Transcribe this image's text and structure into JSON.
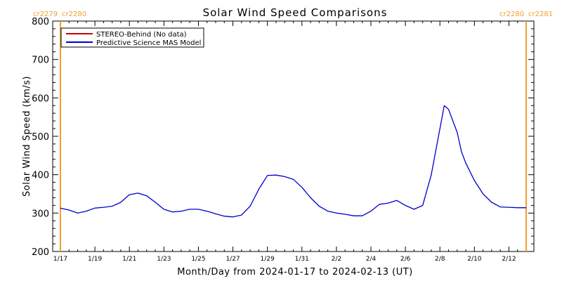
{
  "chart_data": {
    "type": "line",
    "title": "Solar Wind Speed Comparisons",
    "xlabel": "Month/Day from 2024-01-17 to 2024-02-13 (UT)",
    "ylabel": "Solar Wind Speed (km/s)",
    "ylim": [
      200,
      800
    ],
    "yticks": [
      200,
      300,
      400,
      500,
      600,
      700,
      800
    ],
    "xlim": [
      "2024-01-17",
      "2024-02-13"
    ],
    "xticks": [
      {
        "date": "2024-01-17",
        "label": "1/17"
      },
      {
        "date": "2024-01-19",
        "label": "1/19"
      },
      {
        "date": "2024-01-21",
        "label": "1/21"
      },
      {
        "date": "2024-01-23",
        "label": "1/23"
      },
      {
        "date": "2024-01-25",
        "label": "1/25"
      },
      {
        "date": "2024-01-27",
        "label": "1/27"
      },
      {
        "date": "2024-01-29",
        "label": "1/29"
      },
      {
        "date": "2024-01-31",
        "label": "1/31"
      },
      {
        "date": "2024-02-02",
        "label": "2/2"
      },
      {
        "date": "2024-02-04",
        "label": "2/4"
      },
      {
        "date": "2024-02-06",
        "label": "2/6"
      },
      {
        "date": "2024-02-08",
        "label": "2/8"
      },
      {
        "date": "2024-02-10",
        "label": "2/10"
      },
      {
        "date": "2024-02-12",
        "label": "2/12"
      }
    ],
    "legend": {
      "placement": "top-left",
      "boxed": true
    },
    "series": [
      {
        "name": "STEREO-Behind (No data)",
        "color": "#cc0000",
        "x": [],
        "y": []
      },
      {
        "name": "Predictive Science MAS Model",
        "color": "#0000cc",
        "x": [
          "2024-01-17T00",
          "2024-01-17T12",
          "2024-01-18T00",
          "2024-01-18T12",
          "2024-01-19T00",
          "2024-01-19T12",
          "2024-01-20T00",
          "2024-01-20T12",
          "2024-01-21T00",
          "2024-01-21T12",
          "2024-01-22T00",
          "2024-01-22T12",
          "2024-01-23T00",
          "2024-01-23T12",
          "2024-01-24T00",
          "2024-01-24T12",
          "2024-01-25T00",
          "2024-01-25T12",
          "2024-01-26T00",
          "2024-01-26T12",
          "2024-01-27T00",
          "2024-01-27T12",
          "2024-01-28T00",
          "2024-01-28T12",
          "2024-01-29T00",
          "2024-01-29T12",
          "2024-01-30T00",
          "2024-01-30T12",
          "2024-01-31T00",
          "2024-01-31T12",
          "2024-02-01T00",
          "2024-02-01T12",
          "2024-02-02T00",
          "2024-02-02T12",
          "2024-02-03T00",
          "2024-02-03T12",
          "2024-02-04T00",
          "2024-02-04T12",
          "2024-02-05T00",
          "2024-02-05T12",
          "2024-02-06T00",
          "2024-02-06T12",
          "2024-02-07T00",
          "2024-02-07T12",
          "2024-02-08T00",
          "2024-02-08T06",
          "2024-02-08T12",
          "2024-02-09T00",
          "2024-02-09T06",
          "2024-02-09T12",
          "2024-02-10T00",
          "2024-02-10T12",
          "2024-02-11T00",
          "2024-02-11T12",
          "2024-02-12T00",
          "2024-02-12T12",
          "2024-02-13T00"
        ],
        "y": [
          313,
          308,
          300,
          305,
          313,
          315,
          318,
          328,
          348,
          352,
          345,
          328,
          310,
          303,
          305,
          310,
          310,
          305,
          298,
          292,
          290,
          295,
          318,
          362,
          398,
          399,
          395,
          388,
          367,
          340,
          318,
          305,
          300,
          297,
          293,
          293,
          305,
          323,
          326,
          333,
          320,
          310,
          320,
          400,
          520,
          580,
          570,
          510,
          460,
          430,
          385,
          350,
          328,
          316,
          315,
          314,
          314
        ]
      }
    ],
    "annotations": [
      {
        "label": "cr2279",
        "position": "top-left"
      },
      {
        "label": "cr2280",
        "position": "top-left"
      },
      {
        "label": "cr2280",
        "position": "top-right"
      },
      {
        "label": "cr2281",
        "position": "top-right"
      }
    ],
    "boundary_line_color": "#f0a030"
  }
}
